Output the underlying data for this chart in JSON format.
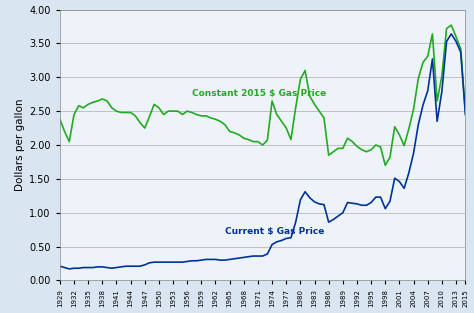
{
  "title": "",
  "xlabel": "",
  "ylabel": "Dollars per gallon",
  "xlim": [
    1929,
    2015
  ],
  "ylim": [
    0.0,
    4.0
  ],
  "yticks": [
    0.0,
    0.5,
    1.0,
    1.5,
    2.0,
    2.5,
    3.0,
    3.5,
    4.0
  ],
  "xticks": [
    1929,
    1932,
    1935,
    1938,
    1941,
    1944,
    1947,
    1950,
    1953,
    1956,
    1959,
    1962,
    1965,
    1968,
    1971,
    1974,
    1977,
    1980,
    1983,
    1986,
    1989,
    1992,
    1995,
    1998,
    2001,
    2004,
    2007,
    2010,
    2013,
    2015
  ],
  "bg_color": "#d9e5f0",
  "plot_bg_color": "#eef3f9",
  "current_color": "#003399",
  "constant_color": "#22aa22",
  "current_label": "Current $ Gas Price",
  "constant_label": "Constant 2015 $ Gas Price",
  "years": [
    1929,
    1930,
    1931,
    1932,
    1933,
    1934,
    1935,
    1936,
    1937,
    1938,
    1939,
    1940,
    1941,
    1942,
    1943,
    1944,
    1945,
    1946,
    1947,
    1948,
    1949,
    1950,
    1951,
    1952,
    1953,
    1954,
    1955,
    1956,
    1957,
    1958,
    1959,
    1960,
    1961,
    1962,
    1963,
    1964,
    1965,
    1966,
    1967,
    1968,
    1969,
    1970,
    1971,
    1972,
    1973,
    1974,
    1975,
    1976,
    1977,
    1978,
    1979,
    1980,
    1981,
    1982,
    1983,
    1984,
    1985,
    1986,
    1987,
    1988,
    1989,
    1990,
    1991,
    1992,
    1993,
    1994,
    1995,
    1996,
    1997,
    1998,
    1999,
    2000,
    2001,
    2002,
    2003,
    2004,
    2005,
    2006,
    2007,
    2008,
    2009,
    2010,
    2011,
    2012,
    2013,
    2014,
    2015
  ],
  "current": [
    0.21,
    0.19,
    0.17,
    0.18,
    0.18,
    0.19,
    0.19,
    0.19,
    0.2,
    0.2,
    0.19,
    0.18,
    0.19,
    0.2,
    0.21,
    0.21,
    0.21,
    0.21,
    0.23,
    0.26,
    0.27,
    0.27,
    0.27,
    0.27,
    0.27,
    0.27,
    0.27,
    0.28,
    0.29,
    0.29,
    0.3,
    0.31,
    0.31,
    0.31,
    0.3,
    0.3,
    0.31,
    0.32,
    0.33,
    0.34,
    0.35,
    0.36,
    0.36,
    0.36,
    0.39,
    0.53,
    0.57,
    0.59,
    0.62,
    0.63,
    0.86,
    1.19,
    1.31,
    1.22,
    1.16,
    1.13,
    1.12,
    0.86,
    0.9,
    0.95,
    1.0,
    1.15,
    1.14,
    1.13,
    1.11,
    1.11,
    1.15,
    1.23,
    1.23,
    1.06,
    1.17,
    1.51,
    1.46,
    1.36,
    1.59,
    1.88,
    2.3,
    2.59,
    2.8,
    3.27,
    2.35,
    2.79,
    3.53,
    3.64,
    3.53,
    3.37,
    2.45
  ],
  "constant": [
    2.38,
    2.2,
    2.05,
    2.45,
    2.58,
    2.55,
    2.6,
    2.63,
    2.65,
    2.68,
    2.65,
    2.55,
    2.5,
    2.48,
    2.48,
    2.48,
    2.43,
    2.33,
    2.25,
    2.42,
    2.6,
    2.55,
    2.45,
    2.5,
    2.5,
    2.5,
    2.45,
    2.5,
    2.48,
    2.45,
    2.43,
    2.43,
    2.4,
    2.38,
    2.35,
    2.3,
    2.2,
    2.18,
    2.15,
    2.1,
    2.08,
    2.05,
    2.05,
    2.0,
    2.07,
    2.65,
    2.45,
    2.35,
    2.25,
    2.08,
    2.55,
    2.97,
    3.1,
    2.72,
    2.6,
    2.5,
    2.4,
    1.85,
    1.9,
    1.95,
    1.95,
    2.1,
    2.05,
    1.98,
    1.93,
    1.9,
    1.93,
    2.0,
    1.97,
    1.7,
    1.82,
    2.27,
    2.15,
    1.99,
    2.24,
    2.53,
    2.98,
    3.22,
    3.31,
    3.64,
    2.65,
    3.02,
    3.72,
    3.77,
    3.6,
    3.42,
    2.45
  ]
}
